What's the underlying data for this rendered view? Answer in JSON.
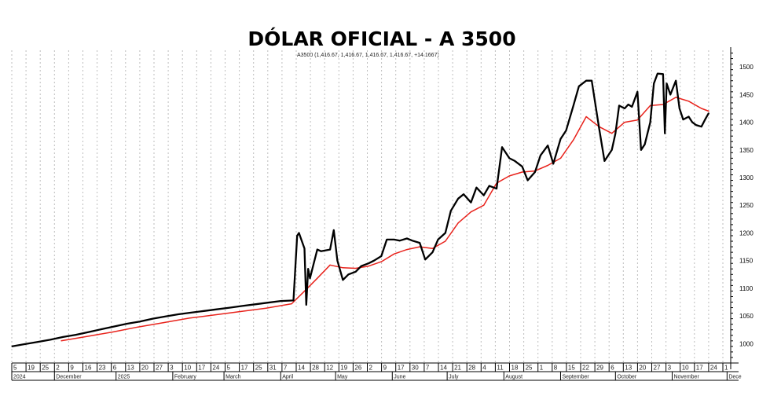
{
  "chart_data": {
    "type": "line",
    "title": "DÓLAR OFICIAL - A 3500",
    "info": "A3500 (1,416.67, 1,416.67, 1,416.67, 1,416.67, +14.1667)",
    "xlabel": "",
    "ylabel": "",
    "ylim": [
      965,
      1530
    ],
    "grid": "vertical dashed",
    "y_ticks": [
      1000,
      1050,
      1100,
      1150,
      1200,
      1250,
      1300,
      1350,
      1400,
      1450,
      1500
    ],
    "day_ticks": [
      "5",
      "19",
      "25",
      "2",
      "9",
      "16",
      "23",
      "6",
      "13",
      "20",
      "27",
      "3",
      "10",
      "17",
      "24",
      "5",
      "17",
      "25",
      "31",
      "7",
      "14",
      "28",
      "12",
      "19",
      "26",
      "2",
      "9",
      "17",
      "30",
      "7",
      "14",
      "21",
      "28",
      "4",
      "11",
      "18",
      "25",
      "1",
      "8",
      "15",
      "22",
      "29",
      "6",
      "13",
      "20",
      "27",
      "3",
      "10",
      "17",
      "24",
      "1"
    ],
    "month_labels": [
      "2024",
      "December",
      "2025",
      "February",
      "March",
      "April",
      "May",
      "June",
      "July",
      "August",
      "September",
      "October",
      "November",
      "Dece"
    ],
    "series": [
      {
        "name": "",
        "color": "#000000",
        "x": [
          "2024-11-05",
          "2024-11-12",
          "2024-11-19",
          "2024-11-26",
          "2024-12-03",
          "2024-12-10",
          "2024-12-17",
          "2024-12-24",
          "2024-12-31",
          "2025-01-07",
          "2025-01-14",
          "2025-01-21",
          "2025-01-28",
          "2025-02-04",
          "2025-02-11",
          "2025-02-18",
          "2025-02-25",
          "2025-03-04",
          "2025-03-11",
          "2025-03-18",
          "2025-03-25",
          "2025-04-01",
          "2025-04-08",
          "2025-04-10",
          "2025-04-11",
          "2025-04-14",
          "2025-04-15",
          "2025-04-16",
          "2025-04-17",
          "2025-04-21",
          "2025-04-23",
          "2025-04-28",
          "2025-04-30",
          "2025-05-02",
          "2025-05-05",
          "2025-05-08",
          "2025-05-12",
          "2025-05-15",
          "2025-05-19",
          "2025-05-22",
          "2025-05-26",
          "2025-05-29",
          "2025-06-02",
          "2025-06-05",
          "2025-06-09",
          "2025-06-12",
          "2025-06-16",
          "2025-06-19",
          "2025-06-23",
          "2025-06-26",
          "2025-06-30",
          "2025-07-03",
          "2025-07-07",
          "2025-07-10",
          "2025-07-14",
          "2025-07-17",
          "2025-07-21",
          "2025-07-24",
          "2025-07-28",
          "2025-07-31",
          "2025-08-04",
          "2025-08-07",
          "2025-08-11",
          "2025-08-14",
          "2025-08-18",
          "2025-08-21",
          "2025-08-25",
          "2025-08-28",
          "2025-09-01",
          "2025-09-04",
          "2025-09-08",
          "2025-09-11",
          "2025-09-15",
          "2025-09-18",
          "2025-09-22",
          "2025-09-25",
          "2025-09-29",
          "2025-10-01",
          "2025-10-03",
          "2025-10-06",
          "2025-10-08",
          "2025-10-10",
          "2025-10-13",
          "2025-10-15",
          "2025-10-17",
          "2025-10-20",
          "2025-10-22",
          "2025-10-24",
          "2025-10-27",
          "2025-10-28",
          "2025-10-29",
          "2025-10-31",
          "2025-11-03",
          "2025-11-05",
          "2025-11-07",
          "2025-11-10",
          "2025-11-12",
          "2025-11-14",
          "2025-11-17",
          "2025-11-19",
          "2025-11-21"
        ],
        "y": [
          995,
          999,
          1003,
          1007,
          1012,
          1016,
          1021,
          1026,
          1031,
          1036,
          1040,
          1045,
          1049,
          1053,
          1056,
          1059,
          1062,
          1065,
          1068,
          1071,
          1074,
          1077,
          1078,
          1195,
          1200,
          1172,
          1070,
          1135,
          1118,
          1170,
          1167,
          1170,
          1205,
          1150,
          1115,
          1125,
          1130,
          1140,
          1145,
          1150,
          1158,
          1188,
          1188,
          1186,
          1190,
          1186,
          1182,
          1152,
          1165,
          1188,
          1200,
          1240,
          1262,
          1270,
          1255,
          1282,
          1268,
          1285,
          1280,
          1355,
          1335,
          1330,
          1320,
          1295,
          1310,
          1340,
          1358,
          1325,
          1370,
          1385,
          1430,
          1465,
          1475,
          1475,
          1390,
          1330,
          1350,
          1380,
          1430,
          1425,
          1432,
          1428,
          1455,
          1350,
          1360,
          1400,
          1470,
          1488,
          1487,
          1380,
          1470,
          1450,
          1475,
          1425,
          1405,
          1410,
          1400,
          1395,
          1392,
          1405,
          1416.67
        ]
      },
      {
        "name": "",
        "color": "#e8231c",
        "x": [
          "2024-12-02",
          "2024-12-16",
          "2024-12-30",
          "2025-01-13",
          "2025-01-27",
          "2025-02-10",
          "2025-02-24",
          "2025-03-10",
          "2025-03-24",
          "2025-04-07",
          "2025-04-15",
          "2025-04-21",
          "2025-04-28",
          "2025-05-05",
          "2025-05-12",
          "2025-05-19",
          "2025-05-26",
          "2025-06-02",
          "2025-06-09",
          "2025-06-16",
          "2025-06-23",
          "2025-06-30",
          "2025-07-07",
          "2025-07-14",
          "2025-07-21",
          "2025-07-28",
          "2025-08-04",
          "2025-08-11",
          "2025-08-18",
          "2025-08-25",
          "2025-09-01",
          "2025-09-08",
          "2025-09-15",
          "2025-09-22",
          "2025-09-29",
          "2025-10-06",
          "2025-10-13",
          "2025-10-20",
          "2025-10-27",
          "2025-11-03",
          "2025-11-10",
          "2025-11-17",
          "2025-11-21"
        ],
        "y": [
          1005,
          1013,
          1021,
          1030,
          1038,
          1046,
          1052,
          1058,
          1064,
          1072,
          1098,
          1118,
          1142,
          1137,
          1136,
          1140,
          1148,
          1162,
          1170,
          1175,
          1172,
          1185,
          1218,
          1238,
          1250,
          1290,
          1303,
          1310,
          1312,
          1322,
          1335,
          1368,
          1410,
          1392,
          1380,
          1400,
          1404,
          1430,
          1432,
          1445,
          1438,
          1425,
          1420
        ]
      }
    ]
  }
}
